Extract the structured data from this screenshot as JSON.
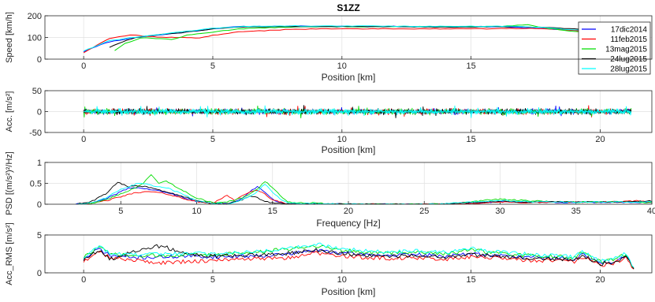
{
  "series": [
    {
      "name": "17dic2014",
      "color": "#0000ff"
    },
    {
      "name": "11feb2015",
      "color": "#ff0000"
    },
    {
      "name": "13mag2015",
      "color": "#00dd00"
    },
    {
      "name": "24lug2015",
      "color": "#000000"
    },
    {
      "name": "28lug2015",
      "color": "#00ffff"
    }
  ],
  "chart_data": [
    {
      "type": "line",
      "title": "S1ZZ",
      "xlabel": "Position [km]",
      "ylabel": "Speed [km/h]",
      "xlim": [
        -1.5,
        22
      ],
      "ylim": [
        0,
        200
      ],
      "xticks": [
        0,
        5,
        10,
        15,
        20
      ],
      "yticks": [
        0,
        100,
        200
      ],
      "grid": true,
      "legend": "top-right",
      "series": [
        {
          "name": "17dic2014",
          "x": [
            0,
            0.5,
            1,
            2,
            3,
            4,
            5,
            6,
            8,
            10,
            12,
            14,
            16,
            17,
            18,
            19,
            20,
            21.2
          ],
          "y": [
            35,
            60,
            80,
            100,
            112,
            125,
            140,
            150,
            152,
            152,
            151,
            150,
            150,
            145,
            140,
            132,
            122,
            105
          ]
        },
        {
          "name": "11feb2015",
          "x": [
            0,
            0.5,
            1,
            1.8,
            2.5,
            3.2,
            4,
            4.5,
            5,
            6,
            8,
            10,
            12,
            14,
            16,
            17.5,
            18.5,
            20,
            21.2
          ],
          "y": [
            30,
            65,
            95,
            112,
            105,
            100,
            100,
            98,
            110,
            125,
            138,
            140,
            140,
            140,
            140,
            142,
            138,
            120,
            100
          ]
        },
        {
          "name": "13mag2015",
          "x": [
            1.2,
            1.6,
            2.2,
            3,
            3.4,
            4,
            5,
            6,
            8,
            10,
            12,
            14,
            16,
            17.2,
            18,
            19,
            20,
            21.2
          ],
          "y": [
            40,
            72,
            98,
            95,
            90,
            110,
            125,
            140,
            148,
            150,
            150,
            150,
            150,
            158,
            142,
            128,
            115,
            95
          ]
        },
        {
          "name": "24lug2015",
          "x": [
            1,
            1.5,
            2,
            3,
            4,
            5,
            6,
            8,
            10,
            12,
            14,
            16,
            17,
            18,
            19,
            20,
            21.2
          ],
          "y": [
            55,
            80,
            100,
            115,
            125,
            140,
            148,
            150,
            150,
            150,
            148,
            150,
            150,
            145,
            140,
            130,
            110
          ]
        },
        {
          "name": "28lug2015",
          "x": [
            0,
            0.5,
            1,
            2,
            3,
            4,
            5,
            6,
            8,
            10,
            12,
            14,
            16,
            17,
            18,
            19,
            20,
            21.2
          ],
          "y": [
            38,
            62,
            85,
            102,
            115,
            128,
            142,
            150,
            153,
            153,
            152,
            151,
            152,
            150,
            144,
            135,
            125,
            108
          ]
        }
      ]
    },
    {
      "type": "line",
      "xlabel": "Position [km]",
      "ylabel": "Acc. [m/s²]",
      "xlim": [
        -1.5,
        22
      ],
      "ylim": [
        -50,
        50
      ],
      "xticks": [
        0,
        5,
        10,
        15,
        20
      ],
      "yticks": [
        -50,
        0,
        50
      ],
      "grid": true,
      "signal_range": [
        0,
        21.2
      ],
      "typical_amplitude": 6,
      "peak_amplitude": 18
    },
    {
      "type": "line",
      "xlabel": "Frequency [Hz]",
      "ylabel": "PSD [(m/s²)²/Hz]",
      "xlim": [
        0,
        40
      ],
      "ylim": [
        0,
        1
      ],
      "xticks": [
        5,
        10,
        15,
        20,
        25,
        30,
        35,
        40
      ],
      "yticks": [
        0,
        0.5,
        1
      ],
      "grid": true,
      "series": [
        {
          "name": "17dic2014",
          "x": [
            2,
            3,
            4,
            5,
            5.5,
            6,
            7,
            8,
            9,
            10,
            11,
            12,
            12.5,
            13,
            13.5,
            14,
            14.5,
            15,
            15.5,
            16,
            20,
            26,
            28,
            30,
            32,
            35,
            38,
            40,
            42,
            43
          ],
          "y": [
            0,
            0.02,
            0.12,
            0.3,
            0.38,
            0.4,
            0.35,
            0.28,
            0.18,
            0.06,
            0.02,
            0.01,
            0.05,
            0.15,
            0.3,
            0.42,
            0.3,
            0.12,
            0.04,
            0.01,
            0,
            0,
            0.03,
            0.06,
            0.05,
            0.04,
            0.05,
            0.04,
            0.06,
            0.03
          ]
        },
        {
          "name": "11feb2015",
          "x": [
            2,
            3,
            4,
            5,
            6,
            7,
            8,
            9,
            10,
            11,
            11.5,
            12,
            12.5,
            13,
            13.5,
            14,
            14.5,
            15,
            16,
            20,
            26,
            28,
            30,
            32,
            35,
            38,
            39,
            40,
            42,
            43
          ],
          "y": [
            0,
            0.02,
            0.08,
            0.18,
            0.28,
            0.3,
            0.25,
            0.15,
            0.06,
            0.02,
            0.1,
            0.22,
            0.1,
            0.2,
            0.3,
            0.32,
            0.25,
            0.1,
            0.01,
            0,
            0,
            0.02,
            0.05,
            0.04,
            0.05,
            0.06,
            0.08,
            0.04,
            0.06,
            0.02
          ]
        },
        {
          "name": "13mag2015",
          "x": [
            2,
            3,
            4,
            5,
            6,
            6.5,
            7,
            7.5,
            8,
            9,
            10,
            11,
            12,
            13,
            14,
            14.5,
            15,
            15.5,
            16,
            20,
            26,
            28,
            29,
            30,
            32,
            35,
            38,
            40,
            42,
            43
          ],
          "y": [
            0,
            0.02,
            0.1,
            0.25,
            0.4,
            0.5,
            0.72,
            0.5,
            0.55,
            0.35,
            0.15,
            0.04,
            0.05,
            0.15,
            0.35,
            0.55,
            0.4,
            0.2,
            0.05,
            0,
            0,
            0.05,
            0.1,
            0.12,
            0.08,
            0.05,
            0.06,
            0.04,
            0.08,
            0.03
          ]
        },
        {
          "name": "24lug2015",
          "x": [
            2,
            3,
            4,
            4.8,
            5.5,
            6,
            7,
            8,
            9,
            10,
            11,
            12,
            13,
            13.5,
            14,
            14.5,
            15,
            16,
            20,
            26,
            28,
            30,
            32,
            35,
            38,
            40,
            42,
            43
          ],
          "y": [
            0,
            0.05,
            0.25,
            0.52,
            0.42,
            0.45,
            0.4,
            0.3,
            0.2,
            0.08,
            0.02,
            0.01,
            0.1,
            0.2,
            0.15,
            0.08,
            0.03,
            0.01,
            0,
            0,
            0.04,
            0.07,
            0.05,
            0.06,
            0.05,
            0.08,
            0.14,
            0.04
          ]
        },
        {
          "name": "28lug2015",
          "x": [
            2,
            3,
            4,
            5,
            6,
            6.5,
            7,
            8,
            9,
            10,
            11,
            12,
            13,
            14,
            14.5,
            15,
            15.5,
            16,
            20,
            26,
            28,
            30,
            32,
            35,
            38,
            40,
            42,
            43
          ],
          "y": [
            0,
            0.03,
            0.15,
            0.35,
            0.48,
            0.5,
            0.45,
            0.4,
            0.25,
            0.08,
            0.02,
            0.01,
            0.1,
            0.3,
            0.48,
            0.3,
            0.12,
            0.03,
            0,
            0,
            0.05,
            0.09,
            0.06,
            0.05,
            0.06,
            0.05,
            0.07,
            0.04
          ]
        }
      ]
    },
    {
      "type": "line",
      "xlabel": "Position [km]",
      "ylabel": "Acc_RMS [m/s²]",
      "xlim": [
        -1.5,
        22
      ],
      "ylim": [
        0,
        5
      ],
      "xticks": [
        0,
        5,
        10,
        15,
        20
      ],
      "yticks": [
        0,
        5
      ],
      "grid": true,
      "series": [
        {
          "name": "17dic2014",
          "x": [
            0,
            0.3,
            0.6,
            1,
            2,
            3,
            4,
            5,
            6,
            7,
            8,
            9,
            10,
            11,
            12,
            13,
            14,
            15,
            16,
            17,
            18,
            19,
            19.3,
            20,
            20.5,
            21,
            21.3
          ],
          "y": [
            1.8,
            2.5,
            3.2,
            2.3,
            2.0,
            2.1,
            2.2,
            2.1,
            2.2,
            2.3,
            2.5,
            3.0,
            2.6,
            2.4,
            2.3,
            2.4,
            2.2,
            2.5,
            2.3,
            2.1,
            2.0,
            1.8,
            2.4,
            1.3,
            1.5,
            2.3,
            0.6
          ]
        },
        {
          "name": "11feb2015",
          "x": [
            0,
            0.3,
            0.6,
            1,
            2,
            3,
            4,
            5,
            6,
            7,
            8,
            9,
            10,
            11,
            12,
            13,
            14,
            15,
            16,
            17,
            18,
            19,
            19.3,
            20,
            20.5,
            21,
            21.3
          ],
          "y": [
            1.5,
            2.2,
            2.9,
            2.0,
            1.7,
            1.3,
            1.5,
            1.6,
            1.8,
            1.9,
            2.0,
            2.6,
            2.2,
            2.0,
            1.9,
            2.0,
            1.8,
            2.1,
            2.0,
            1.7,
            1.6,
            1.5,
            2.1,
            1.0,
            1.2,
            2.0,
            0.5
          ]
        },
        {
          "name": "13mag2015",
          "x": [
            0,
            0.3,
            0.6,
            1,
            2,
            3,
            4,
            5,
            6,
            7,
            8,
            9,
            10,
            11,
            12,
            13,
            14,
            15,
            16,
            17,
            18,
            19,
            19.3,
            20,
            20.5,
            21,
            21.3
          ],
          "y": [
            2.0,
            2.8,
            3.4,
            2.5,
            2.2,
            2.3,
            2.4,
            2.4,
            2.6,
            2.8,
            3.2,
            3.6,
            3.0,
            2.7,
            2.6,
            2.8,
            2.5,
            3.0,
            2.6,
            2.3,
            2.2,
            2.0,
            2.7,
            1.5,
            1.7,
            2.5,
            0.6
          ]
        },
        {
          "name": "24lug2015",
          "x": [
            0,
            0.3,
            0.6,
            1,
            2,
            2.5,
            3,
            4,
            5,
            6,
            7,
            8,
            9,
            10,
            11,
            12,
            13,
            14,
            15,
            16,
            17,
            18,
            19,
            19.3,
            20,
            20.5,
            21,
            21.3
          ],
          "y": [
            1.7,
            2.3,
            3.0,
            1.8,
            2.8,
            3.2,
            3.6,
            2.5,
            2.2,
            2.3,
            2.4,
            2.6,
            3.0,
            2.5,
            2.3,
            2.2,
            2.3,
            2.1,
            2.4,
            2.2,
            2.0,
            1.9,
            1.7,
            2.3,
            1.2,
            1.4,
            2.2,
            0.5
          ]
        },
        {
          "name": "28lug2015",
          "x": [
            0,
            0.3,
            0.6,
            1,
            2,
            3,
            4,
            5,
            6,
            7,
            8,
            9,
            10,
            11,
            12,
            13,
            14,
            15,
            16,
            17,
            18,
            19,
            19.3,
            20,
            20.5,
            21,
            21.3
          ],
          "y": [
            2.1,
            2.9,
            3.5,
            2.6,
            2.4,
            2.5,
            2.6,
            2.5,
            2.7,
            2.9,
            3.3,
            3.8,
            3.2,
            2.9,
            2.8,
            2.9,
            2.7,
            3.2,
            2.8,
            2.5,
            2.3,
            2.1,
            2.8,
            1.6,
            1.8,
            2.6,
            0.7
          ]
        }
      ]
    }
  ]
}
